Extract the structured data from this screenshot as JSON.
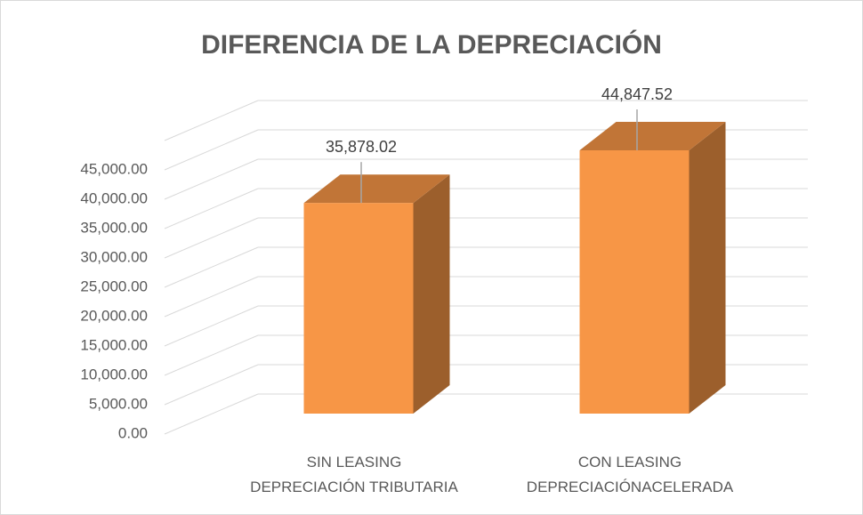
{
  "chart_data": {
    "type": "bar3d",
    "title": "DIFERENCIA DE LA DEPRECIACIÓN",
    "categories": [
      "SIN LEASING\nDEPRECIACIÓN TRIBUTARIA",
      "CON LEASING\nDEPRECIACIÓNACELERADA"
    ],
    "values": [
      35878.02,
      44847.52
    ],
    "value_labels": [
      "35,878.02",
      "44,847.52"
    ],
    "color": "#f79646",
    "ylim": [
      0,
      50000
    ],
    "yticks": [
      {
        "value": 0,
        "label": "0.00"
      },
      {
        "value": 5000,
        "label": "5,000.00"
      },
      {
        "value": 10000,
        "label": "10,000.00"
      },
      {
        "value": 15000,
        "label": "15,000.00"
      },
      {
        "value": 20000,
        "label": "20,000.00"
      },
      {
        "value": 25000,
        "label": "25,000.00"
      },
      {
        "value": 30000,
        "label": "30,000.00"
      },
      {
        "value": 35000,
        "label": "35,000.00"
      },
      {
        "value": 40000,
        "label": "40,000.00"
      },
      {
        "value": 45000,
        "label": "45,000.00"
      }
    ],
    "grid": true
  }
}
